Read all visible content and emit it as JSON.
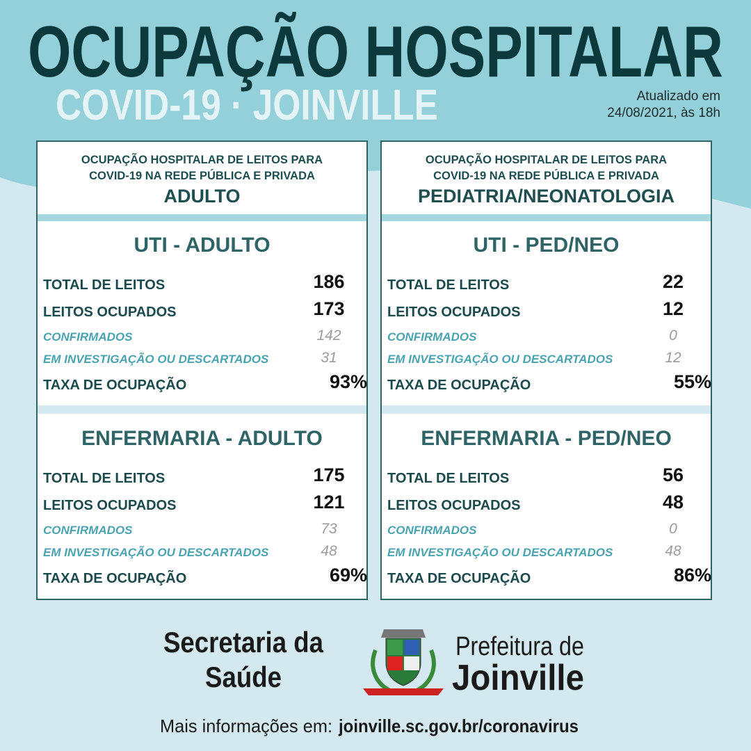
{
  "header": {
    "title": "OCUPAÇÃO HOSPITALAR",
    "subtitle": "COVID-19 · JOINVILLE",
    "updated": [
      "Atualizado em",
      "24/08/2021, às 18h"
    ]
  },
  "panels": [
    {
      "heading": [
        "OCUPAÇÃO HOSPITALAR DE LEITOS PARA",
        "COVID-19 NA REDE PÚBLICA E PRIVADA"
      ],
      "category": "ADULTO",
      "sections": [
        {
          "title": "UTI - ADULTO",
          "rows": [
            {
              "label": "TOTAL DE LEITOS",
              "value": "186"
            },
            {
              "label": "LEITOS OCUPADOS",
              "value": "173"
            },
            {
              "label": "CONFIRMADOS",
              "value": "142"
            },
            {
              "label": "EM INVESTIGAÇÃO OU DESCARTADOS",
              "value": "31"
            },
            {
              "label": "TAXA DE OCUPAÇÃO",
              "value": "93%"
            }
          ]
        },
        {
          "title": "ENFERMARIA - ADULTO",
          "rows": [
            {
              "label": "TOTAL DE LEITOS",
              "value": "175"
            },
            {
              "label": "LEITOS OCUPADOS",
              "value": "121"
            },
            {
              "label": "CONFIRMADOS",
              "value": "73"
            },
            {
              "label": "EM INVESTIGAÇÃO OU DESCARTADOS",
              "value": "48"
            },
            {
              "label": "TAXA DE OCUPAÇÃO",
              "value": "69%"
            }
          ]
        }
      ]
    },
    {
      "heading": [
        "OCUPAÇÃO HOSPITALAR DE LEITOS PARA",
        "COVID-19 NA REDE PÚBLICA E PRIVADA"
      ],
      "category": "PEDIATRIA/NEONATOLOGIA",
      "sections": [
        {
          "title": "UTI - PED/NEO",
          "rows": [
            {
              "label": "TOTAL DE LEITOS",
              "value": "22"
            },
            {
              "label": "LEITOS OCUPADOS",
              "value": "12"
            },
            {
              "label": "CONFIRMADOS",
              "value": "0"
            },
            {
              "label": "EM INVESTIGAÇÃO OU DESCARTADOS",
              "value": "12"
            },
            {
              "label": "TAXA DE OCUPAÇÃO",
              "value": "55%"
            }
          ]
        },
        {
          "title": "ENFERMARIA - PED/NEO",
          "rows": [
            {
              "label": "TOTAL DE LEITOS",
              "value": "56"
            },
            {
              "label": "LEITOS OCUPADOS",
              "value": "48"
            },
            {
              "label": "CONFIRMADOS",
              "value": "0"
            },
            {
              "label": "EM INVESTIGAÇÃO OU DESCARTADOS",
              "value": "48"
            },
            {
              "label": "TAXA DE OCUPAÇÃO",
              "value": "86%"
            }
          ]
        }
      ]
    }
  ],
  "footer": {
    "secretaria": [
      "Secretaria da",
      "Saúde"
    ],
    "prefeitura": [
      "Prefeitura de",
      "Joinville"
    ],
    "info": "Mais informações em:",
    "url": "joinville.sc.gov.br/coronavirus"
  }
}
